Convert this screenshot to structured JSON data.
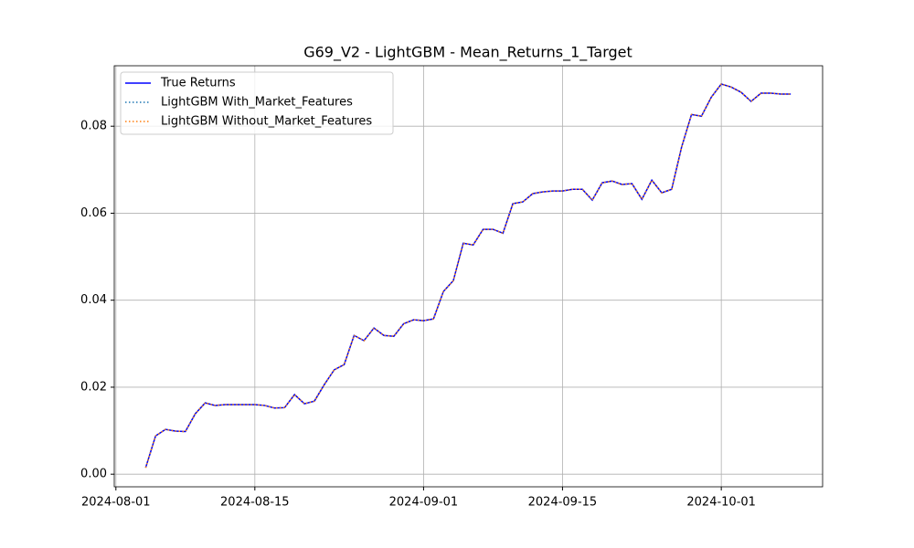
{
  "chart_data": {
    "type": "line",
    "title": "G69_V2 - LightGBM - Mean_Returns_1_Target",
    "x": [
      "2024-08-04",
      "2024-08-05",
      "2024-08-06",
      "2024-08-07",
      "2024-08-08",
      "2024-08-09",
      "2024-08-10",
      "2024-08-11",
      "2024-08-12",
      "2024-08-13",
      "2024-08-14",
      "2024-08-15",
      "2024-08-16",
      "2024-08-17",
      "2024-08-18",
      "2024-08-19",
      "2024-08-20",
      "2024-08-21",
      "2024-08-22",
      "2024-08-23",
      "2024-08-24",
      "2024-08-25",
      "2024-08-26",
      "2024-08-27",
      "2024-08-28",
      "2024-08-29",
      "2024-08-30",
      "2024-08-31",
      "2024-09-01",
      "2024-09-02",
      "2024-09-03",
      "2024-09-04",
      "2024-09-05",
      "2024-09-06",
      "2024-09-07",
      "2024-09-08",
      "2024-09-09",
      "2024-09-10",
      "2024-09-11",
      "2024-09-12",
      "2024-09-13",
      "2024-09-14",
      "2024-09-15",
      "2024-09-16",
      "2024-09-17",
      "2024-09-18",
      "2024-09-19",
      "2024-09-20",
      "2024-09-21",
      "2024-09-22",
      "2024-09-23",
      "2024-09-24",
      "2024-09-25",
      "2024-09-26",
      "2024-09-27",
      "2024-09-28",
      "2024-09-29",
      "2024-09-30",
      "2024-10-01",
      "2024-10-02",
      "2024-10-03",
      "2024-10-04",
      "2024-10-05",
      "2024-10-06",
      "2024-10-07",
      "2024-10-08"
    ],
    "series": [
      {
        "name": "True Returns",
        "color": "#0000ff",
        "linestyle": "solid",
        "values": [
          0.0015,
          0.0088,
          0.0103,
          0.0099,
          0.0098,
          0.0139,
          0.0164,
          0.0158,
          0.016,
          0.016,
          0.016,
          0.016,
          0.0158,
          0.0152,
          0.0153,
          0.0183,
          0.0162,
          0.0168,
          0.0206,
          0.024,
          0.0252,
          0.0319,
          0.0307,
          0.0336,
          0.0319,
          0.0317,
          0.0346,
          0.0355,
          0.0353,
          0.0357,
          0.042,
          0.0445,
          0.0531,
          0.0527,
          0.0563,
          0.0563,
          0.0554,
          0.0622,
          0.0626,
          0.0645,
          0.0649,
          0.0651,
          0.0651,
          0.0655,
          0.0655,
          0.063,
          0.067,
          0.0674,
          0.0666,
          0.0668,
          0.0632,
          0.0676,
          0.0647,
          0.0655,
          0.0752,
          0.0827,
          0.0823,
          0.0867,
          0.0897,
          0.089,
          0.0878,
          0.0857,
          0.0876,
          0.0876,
          0.0874,
          0.0874
        ]
      },
      {
        "name": "LightGBM With_Market_Features",
        "color": "#1f77b4",
        "linestyle": "dotted",
        "values": [
          0.0015,
          0.0088,
          0.0103,
          0.0099,
          0.0098,
          0.0139,
          0.0164,
          0.0158,
          0.016,
          0.016,
          0.016,
          0.016,
          0.0158,
          0.0152,
          0.0153,
          0.0183,
          0.0162,
          0.0168,
          0.0206,
          0.024,
          0.0252,
          0.0319,
          0.0307,
          0.0336,
          0.0319,
          0.0317,
          0.0346,
          0.0355,
          0.0353,
          0.0357,
          0.042,
          0.0445,
          0.0531,
          0.0527,
          0.0563,
          0.0563,
          0.0554,
          0.0622,
          0.0626,
          0.0645,
          0.0649,
          0.0651,
          0.0651,
          0.0655,
          0.0655,
          0.063,
          0.067,
          0.0674,
          0.0666,
          0.0668,
          0.0632,
          0.0676,
          0.0647,
          0.0655,
          0.0752,
          0.0827,
          0.0823,
          0.0867,
          0.0897,
          0.089,
          0.0878,
          0.0857,
          0.0876,
          0.0876,
          0.0874,
          0.0874
        ]
      },
      {
        "name": "LightGBM Without_Market_Features",
        "color": "#ff7f0e",
        "linestyle": "dotted",
        "values": [
          0.0015,
          0.0088,
          0.0103,
          0.0099,
          0.0098,
          0.0139,
          0.0164,
          0.0158,
          0.016,
          0.016,
          0.016,
          0.016,
          0.0158,
          0.0152,
          0.0153,
          0.0183,
          0.0162,
          0.0168,
          0.0206,
          0.024,
          0.0252,
          0.0319,
          0.0307,
          0.0336,
          0.0319,
          0.0317,
          0.0346,
          0.0355,
          0.0353,
          0.0357,
          0.042,
          0.0445,
          0.0531,
          0.0527,
          0.0563,
          0.0563,
          0.0554,
          0.0622,
          0.0626,
          0.0645,
          0.0649,
          0.0651,
          0.0651,
          0.0655,
          0.0655,
          0.063,
          0.067,
          0.0674,
          0.0666,
          0.0668,
          0.0632,
          0.0676,
          0.0647,
          0.0655,
          0.0752,
          0.0827,
          0.0823,
          0.0867,
          0.0897,
          0.089,
          0.0878,
          0.0857,
          0.0876,
          0.0876,
          0.0874,
          0.0874
        ]
      }
    ],
    "xlim": [
      "2024-07-31T20:00:00Z",
      "2024-10-11T05:00:00Z"
    ],
    "xticks": [
      "2024-08-01",
      "2024-08-15",
      "2024-09-01",
      "2024-09-15",
      "2024-10-01"
    ],
    "ylim": [
      -0.0029,
      0.0939
    ],
    "yticks": [
      {
        "value": 0,
        "label": "0.00"
      },
      0.02,
      0.04,
      0.06,
      0.08
    ],
    "grid": true,
    "legend": "upper left"
  }
}
